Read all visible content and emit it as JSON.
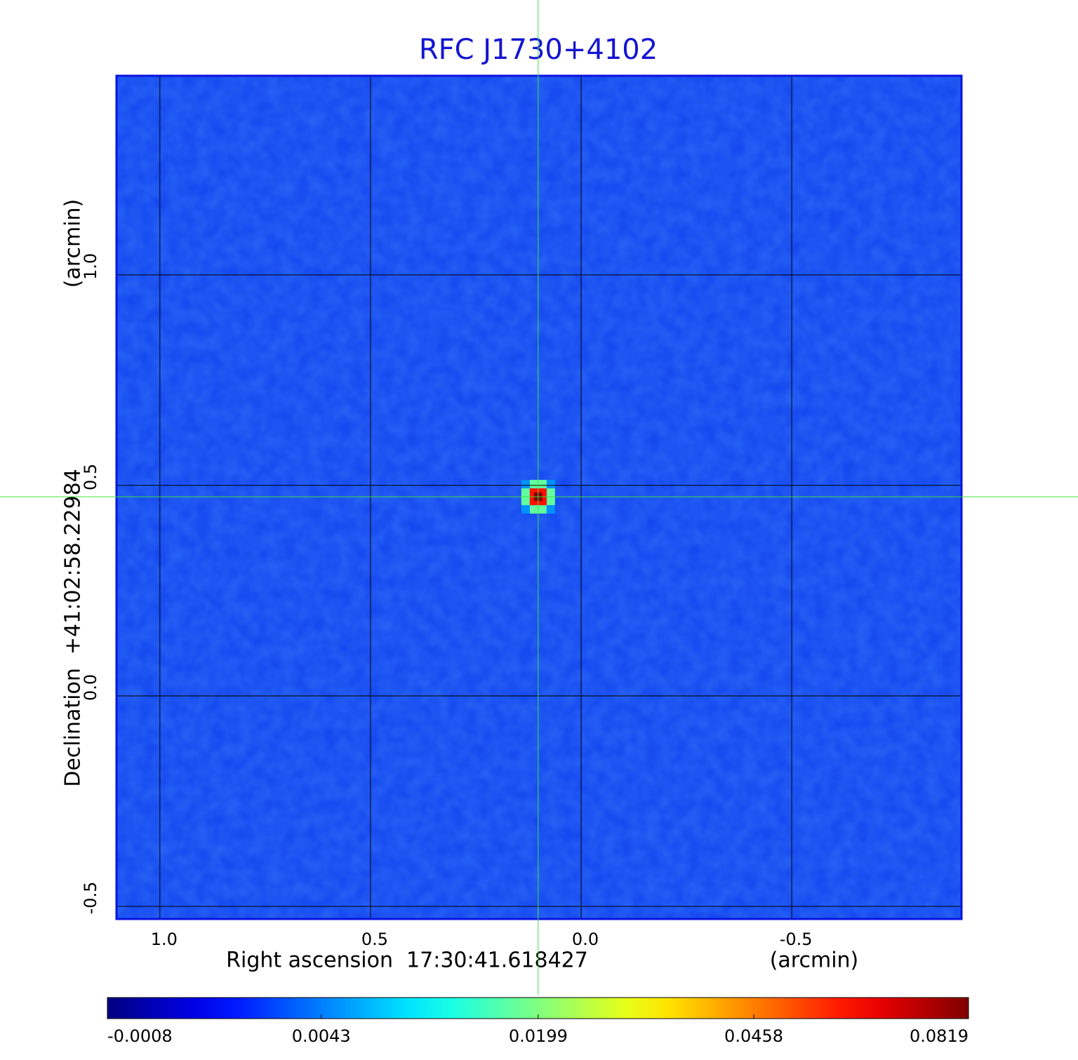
{
  "chart_data": {
    "type": "image",
    "title": "RFC J1730+4102",
    "xlabel": "Right ascension  17:30:41.618427",
    "xunit": "(arcmin)",
    "ylabel": "Declination  +41:02:58.22984",
    "yunit": "(arcmin)",
    "xlim": [
      1.103,
      -0.903
    ],
    "ylim": [
      -0.53,
      1.473
    ],
    "xticks": [
      {
        "value": 1,
        "label": "1.0"
      },
      0.5,
      {
        "value": 0,
        "label": "0.0"
      },
      -0.5
    ],
    "yticks": [
      -0.5,
      {
        "value": 0,
        "label": "0.0"
      },
      0.5,
      {
        "value": 1,
        "label": "1.0"
      }
    ],
    "grid": true,
    "source": {
      "x": 0.102,
      "y": 0.473,
      "peak": 0.0819
    },
    "colorbar": {
      "colormap": "jet",
      "scale": "sqrt",
      "lim": [
        -0.0008,
        0.0819
      ],
      "ticks": [
        -0.0008,
        0.0043,
        0.0199,
        0.0458,
        0.0819
      ]
    }
  }
}
